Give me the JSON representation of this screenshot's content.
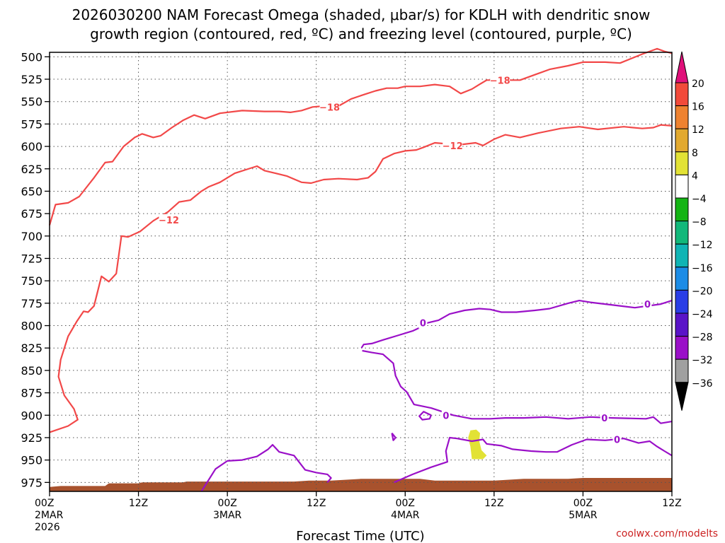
{
  "title": {
    "line1": "2026030200 NAM Forecast Omega (shaded, μbar/s) for KDLH with dendritic snow",
    "line2": "growth region (contoured, red, ºC) and freezing level (contoured, purple, ºC)"
  },
  "credit": "coolwx.com/modelts",
  "colors": {
    "dgz_contour": "#f24848",
    "freezing_contour": "#9a10c8",
    "terrain": "#a8522d",
    "grid": "#555555",
    "omega_patch": "#e2e235"
  },
  "chart_data": {
    "type": "time-height contour",
    "xlabel": "Forecast Time (UTC)",
    "ylabel": "",
    "xlim": [
      0,
      84
    ],
    "ylim": [
      985,
      495
    ],
    "yticks": [
      500,
      525,
      550,
      575,
      600,
      625,
      650,
      675,
      700,
      725,
      750,
      775,
      800,
      825,
      850,
      875,
      900,
      925,
      950,
      975
    ],
    "xticks": [
      {
        "x": 0,
        "top": "00Z",
        "mid": "2MAR",
        "bot": "2026"
      },
      {
        "x": 12,
        "top": "12Z",
        "mid": "",
        "bot": ""
      },
      {
        "x": 24,
        "top": "00Z",
        "mid": "3MAR",
        "bot": ""
      },
      {
        "x": 36,
        "top": "12Z",
        "mid": "",
        "bot": ""
      },
      {
        "x": 48,
        "top": "00Z",
        "mid": "4MAR",
        "bot": ""
      },
      {
        "x": 60,
        "top": "12Z",
        "mid": "",
        "bot": ""
      },
      {
        "x": 72,
        "top": "00Z",
        "mid": "5MAR",
        "bot": ""
      },
      {
        "x": 84,
        "top": "12Z",
        "mid": "",
        "bot": ""
      }
    ],
    "grid": true,
    "colorbar": {
      "units": "μbar/s",
      "bins": [
        {
          "lo": 20,
          "hi": null,
          "color": "#e0107a"
        },
        {
          "lo": 16,
          "hi": 20,
          "color": "#f24a3a"
        },
        {
          "lo": 12,
          "hi": 16,
          "color": "#ee8230"
        },
        {
          "lo": 8,
          "hi": 12,
          "color": "#e2a92f"
        },
        {
          "lo": 4,
          "hi": 8,
          "color": "#e2e235"
        },
        {
          "lo": -4,
          "hi": 4,
          "color": "#ffffff"
        },
        {
          "lo": -8,
          "hi": -4,
          "color": "#14b414"
        },
        {
          "lo": -12,
          "hi": -8,
          "color": "#12b87a"
        },
        {
          "lo": -16,
          "hi": -12,
          "color": "#10b4b4"
        },
        {
          "lo": -20,
          "hi": -16,
          "color": "#1c8ce6"
        },
        {
          "lo": -24,
          "hi": -20,
          "color": "#2a3ee6"
        },
        {
          "lo": -28,
          "hi": -24,
          "color": "#5a14c8"
        },
        {
          "lo": -32,
          "hi": -28,
          "color": "#9a10c8"
        },
        {
          "lo": -36,
          "hi": -32,
          "color": "#a0a0a0"
        },
        {
          "lo": null,
          "hi": -36,
          "color": "#000000"
        }
      ],
      "labels": [
        "20",
        "16",
        "12",
        "8",
        "4",
        "−4",
        "−8",
        "−12",
        "−16",
        "−20",
        "−24",
        "−28",
        "−32",
        "−36"
      ]
    },
    "series": [
      {
        "kind": "dgz",
        "label": "−18",
        "points": [
          [
            0,
            688
          ],
          [
            0.8,
            665
          ],
          [
            2.5,
            663
          ],
          [
            4,
            656
          ],
          [
            6,
            635
          ],
          [
            7.5,
            618
          ],
          [
            8.5,
            617
          ],
          [
            10,
            600
          ],
          [
            11.5,
            590
          ],
          [
            12.5,
            586
          ],
          [
            14,
            590
          ],
          [
            15,
            588
          ],
          [
            16.5,
            579
          ],
          [
            18,
            571
          ],
          [
            19.5,
            565
          ],
          [
            21,
            569
          ],
          [
            23,
            563
          ],
          [
            26,
            560
          ],
          [
            29,
            561
          ],
          [
            31,
            561
          ],
          [
            32.5,
            562
          ],
          [
            34,
            560
          ],
          [
            35.5,
            556
          ],
          [
            37,
            555
          ],
          [
            39,
            555
          ],
          [
            40.7,
            547
          ],
          [
            42.5,
            542
          ],
          [
            44,
            538
          ],
          [
            45.5,
            535
          ],
          [
            47,
            535
          ],
          [
            48,
            533
          ],
          [
            50,
            533
          ],
          [
            52,
            531
          ],
          [
            54,
            533
          ],
          [
            55.5,
            541
          ],
          [
            57,
            536
          ],
          [
            58,
            531
          ],
          [
            59,
            526
          ],
          [
            61,
            526
          ],
          [
            63.5,
            526
          ],
          [
            65.5,
            520
          ],
          [
            67.5,
            514
          ],
          [
            70,
            510
          ],
          [
            72,
            506
          ],
          [
            75,
            506
          ],
          [
            77,
            507
          ],
          [
            78.5,
            502
          ],
          [
            80,
            497
          ],
          [
            82,
            491
          ],
          [
            83,
            494
          ],
          [
            84,
            496
          ]
        ],
        "labels": [
          [
            37.8,
            556
          ],
          [
            60.8,
            526
          ]
        ]
      },
      {
        "kind": "dgz",
        "label": "−12",
        "points": [
          [
            0,
            919
          ],
          [
            2.5,
            912
          ],
          [
            3.8,
            905
          ],
          [
            3.3,
            893
          ],
          [
            2,
            878
          ],
          [
            1.2,
            857
          ],
          [
            1.5,
            838
          ],
          [
            2.5,
            812
          ],
          [
            3.7,
            795
          ],
          [
            4.6,
            784
          ],
          [
            5.2,
            785
          ],
          [
            6,
            778
          ],
          [
            7,
            745
          ],
          [
            8,
            751
          ],
          [
            9,
            742
          ],
          [
            9.7,
            700
          ],
          [
            10.6,
            701
          ],
          [
            12.2,
            695
          ],
          [
            14,
            683
          ],
          [
            16,
            673
          ],
          [
            17.5,
            662
          ],
          [
            19,
            660
          ],
          [
            20.5,
            650
          ],
          [
            21.5,
            645
          ],
          [
            23,
            640
          ],
          [
            25,
            630
          ],
          [
            26.5,
            626
          ],
          [
            28,
            622
          ],
          [
            29,
            627
          ],
          [
            30.5,
            630
          ],
          [
            32,
            633
          ],
          [
            34,
            640
          ],
          [
            35.3,
            641
          ],
          [
            37,
            637
          ],
          [
            39,
            636
          ],
          [
            41.5,
            637
          ],
          [
            43,
            635
          ],
          [
            44,
            628
          ],
          [
            45,
            614
          ],
          [
            46.5,
            608
          ],
          [
            48,
            605
          ],
          [
            49.5,
            604
          ],
          [
            50.5,
            601
          ],
          [
            52,
            596
          ],
          [
            53.5,
            597
          ],
          [
            55.5,
            598
          ],
          [
            57.5,
            596
          ],
          [
            58.5,
            599
          ],
          [
            60,
            592
          ],
          [
            61.5,
            587
          ],
          [
            63.5,
            590
          ],
          [
            66,
            585
          ],
          [
            69,
            580
          ],
          [
            71.5,
            578
          ],
          [
            74,
            581
          ],
          [
            77.5,
            578
          ],
          [
            80,
            580
          ],
          [
            81.5,
            579
          ],
          [
            82.5,
            576
          ],
          [
            84,
            577
          ]
        ],
        "labels": [
          [
            16.1,
            682
          ],
          [
            54.4,
            599
          ]
        ]
      },
      {
        "kind": "freezing",
        "label": "0",
        "points": [
          [
            42.1,
            825
          ],
          [
            42.4,
            821
          ],
          [
            43.5,
            820
          ],
          [
            45,
            816
          ],
          [
            47,
            811
          ],
          [
            49,
            806
          ],
          [
            50.3,
            801
          ],
          [
            51,
            797
          ],
          [
            52.5,
            794
          ],
          [
            54,
            787
          ],
          [
            56,
            783
          ],
          [
            58,
            781
          ],
          [
            59.5,
            782
          ],
          [
            61,
            785
          ],
          [
            63,
            785
          ],
          [
            65.5,
            783
          ],
          [
            67.5,
            781
          ],
          [
            70,
            775
          ],
          [
            71.5,
            772
          ],
          [
            73,
            774
          ],
          [
            76,
            777
          ],
          [
            79,
            780
          ],
          [
            82.5,
            776
          ],
          [
            84,
            772
          ]
        ],
        "labels": [
          [
            50.4,
            797
          ],
          [
            80.7,
            776
          ]
        ]
      },
      {
        "kind": "freezing",
        "label": "0",
        "points": [
          [
            42.2,
            828
          ],
          [
            43.5,
            830
          ],
          [
            45,
            832
          ],
          [
            46.4,
            842
          ],
          [
            46.7,
            856
          ],
          [
            47.4,
            868
          ],
          [
            48.2,
            874
          ],
          [
            49.2,
            888
          ],
          [
            51.5,
            892
          ],
          [
            53,
            896
          ],
          [
            54.5,
            900
          ],
          [
            57,
            904
          ],
          [
            59.5,
            904
          ],
          [
            61.5,
            903
          ],
          [
            64,
            903
          ],
          [
            67,
            902
          ],
          [
            70,
            904
          ],
          [
            73,
            902
          ],
          [
            76,
            903
          ],
          [
            80.5,
            904
          ],
          [
            81.5,
            902
          ],
          [
            82.5,
            909
          ],
          [
            84,
            907
          ]
        ],
        "labels": [
          [
            53.5,
            900
          ],
          [
            74.9,
            903
          ]
        ]
      },
      {
        "kind": "freezing",
        "label": "0",
        "points": [
          [
            51.5,
            900
          ],
          [
            51.3,
            904
          ],
          [
            50.3,
            905
          ],
          [
            49.9,
            901
          ],
          [
            50.5,
            896
          ],
          [
            51.5,
            900
          ]
        ],
        "labels": []
      },
      {
        "kind": "freezing",
        "label": "0",
        "points": [
          [
            46.2,
            920
          ],
          [
            46.4,
            928
          ],
          [
            46.7,
            925
          ],
          [
            46.2,
            920
          ]
        ],
        "labels": []
      },
      {
        "kind": "freezing",
        "label": "0",
        "points": [
          [
            46.5,
            975
          ],
          [
            49,
            966
          ],
          [
            51.5,
            958
          ],
          [
            53.7,
            952
          ],
          [
            53.5,
            940
          ],
          [
            54,
            925
          ],
          [
            55,
            926
          ],
          [
            57,
            929
          ],
          [
            58.5,
            927
          ],
          [
            59,
            932
          ],
          [
            61,
            934
          ],
          [
            62.5,
            938
          ],
          [
            65,
            940
          ],
          [
            67,
            941
          ],
          [
            68.5,
            941
          ],
          [
            70.5,
            933
          ],
          [
            72.5,
            927
          ],
          [
            75,
            928
          ],
          [
            77.5,
            926
          ],
          [
            79.5,
            931
          ],
          [
            81,
            929
          ],
          [
            82,
            935
          ],
          [
            83,
            940
          ],
          [
            84,
            945
          ]
        ],
        "labels": [
          [
            76.6,
            927
          ]
        ]
      },
      {
        "kind": "freezing",
        "label": "0",
        "points": [
          [
            20.5,
            985
          ],
          [
            22.4,
            960
          ],
          [
            24,
            951
          ],
          [
            26,
            950
          ],
          [
            28,
            946
          ],
          [
            29.5,
            938
          ],
          [
            30.1,
            933
          ],
          [
            31,
            941
          ],
          [
            33,
            945
          ],
          [
            34.5,
            961
          ],
          [
            36,
            964
          ],
          [
            37.5,
            966
          ],
          [
            38,
            970
          ],
          [
            37.5,
            975
          ]
        ],
        "labels": []
      }
    ],
    "omega_patches": [
      {
        "bin": "4 to 8",
        "points": [
          [
            56.8,
            917
          ],
          [
            57.6,
            916
          ],
          [
            58.1,
            920
          ],
          [
            58,
            929
          ],
          [
            58.3,
            939
          ],
          [
            59,
            945
          ],
          [
            58.5,
            949
          ],
          [
            57,
            949
          ],
          [
            56.8,
            935
          ],
          [
            56.5,
            925
          ],
          [
            56.8,
            917
          ]
        ]
      }
    ],
    "terrain_top": [
      [
        0,
        980
      ],
      [
        1.5,
        979
      ],
      [
        5,
        979
      ],
      [
        7.5,
        979
      ],
      [
        8,
        976
      ],
      [
        12,
        976
      ],
      [
        12.5,
        975
      ],
      [
        18,
        975
      ],
      [
        18.5,
        974
      ],
      [
        33,
        974
      ],
      [
        35,
        973
      ],
      [
        38,
        973
      ],
      [
        42,
        971
      ],
      [
        46,
        971
      ],
      [
        50,
        971
      ],
      [
        52,
        973
      ],
      [
        60,
        973
      ],
      [
        64,
        971
      ],
      [
        70,
        971
      ],
      [
        72,
        970
      ],
      [
        80,
        970
      ],
      [
        84,
        970
      ]
    ],
    "terrain_bottom": 985
  }
}
